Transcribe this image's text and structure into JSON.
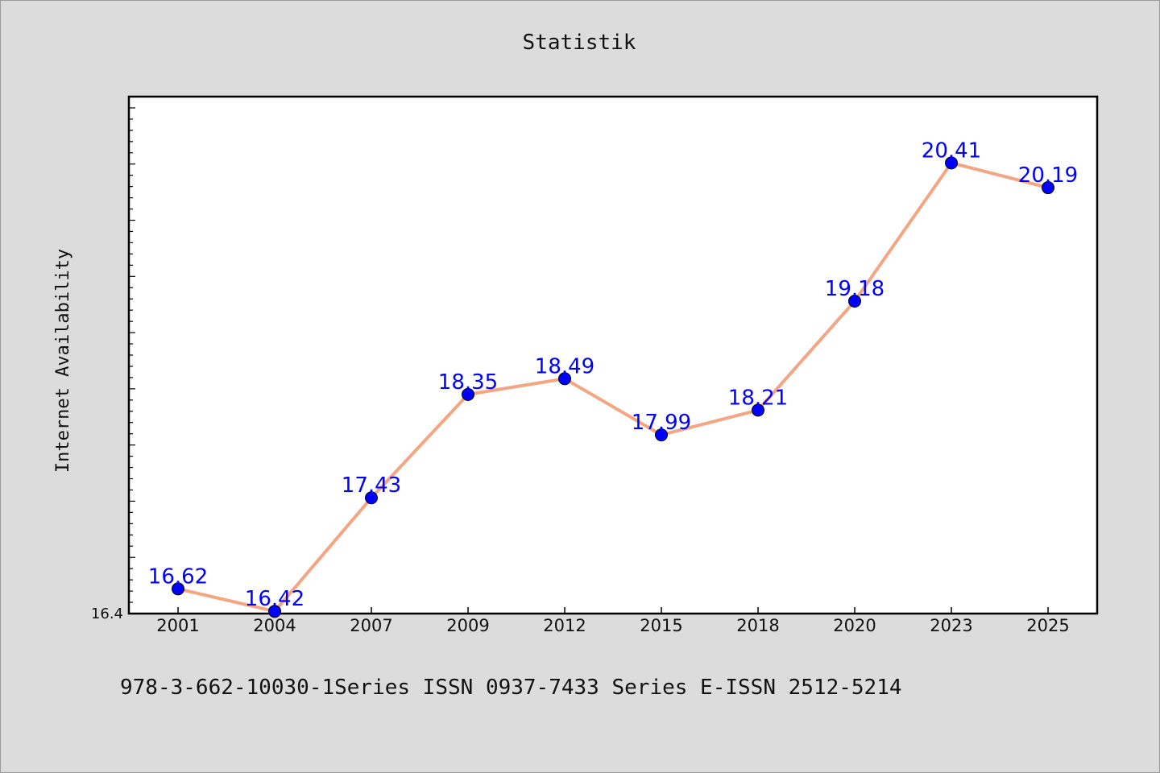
{
  "chart_data": {
    "type": "line",
    "title": "Statistik",
    "xlabel": "",
    "ylabel": "Internet Availability",
    "categories": [
      "2001",
      "2004",
      "2007",
      "2009",
      "2012",
      "2015",
      "2018",
      "2020",
      "2023",
      "2025"
    ],
    "series": [
      {
        "values": [
          16.62,
          16.42,
          17.43,
          18.35,
          18.49,
          17.99,
          18.21,
          19.18,
          20.41,
          20.19
        ]
      }
    ],
    "data_labels": [
      "16.62",
      "16.42",
      "17.43",
      "18.35",
      "18.49",
      "17.99",
      "18.21",
      "19.18",
      "20.41",
      "20.19"
    ],
    "y_tick_labels": [
      "16.4"
    ],
    "ylim": [
      16.4,
      21.0
    ],
    "grid": false,
    "legend": "none",
    "footer_text": "978-3-662-10030-1Series ISSN 0937-7433 Series E-ISSN 2512-5214",
    "colors": {
      "line": "#f4a582",
      "marker": "#0000ff",
      "data_label": "#0000ff",
      "background": "#dcdcdc",
      "plot_background": "#ffffff"
    }
  }
}
